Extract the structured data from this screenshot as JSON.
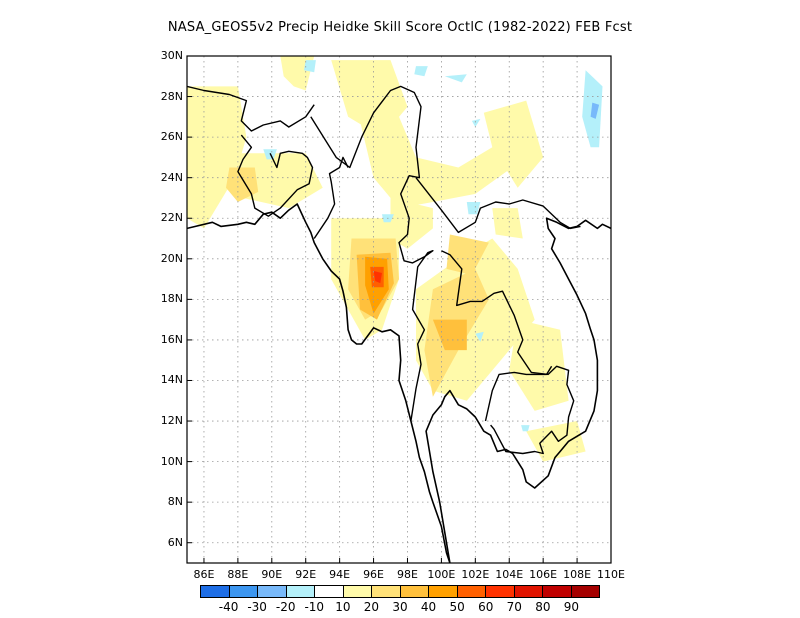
{
  "title": "NASA_GEOS5v2 Precip Heidke Skill Score OctlC (1982-2022) FEB Fcst",
  "map": {
    "lon_range": [
      85,
      110
    ],
    "lat_range": [
      5,
      30
    ],
    "lat_ticks": [
      "30N",
      "28N",
      "26N",
      "24N",
      "22N",
      "20N",
      "18N",
      "16N",
      "14N",
      "12N",
      "10N",
      "8N",
      "6N"
    ],
    "lat_values": [
      30,
      28,
      26,
      24,
      22,
      20,
      18,
      16,
      14,
      12,
      10,
      8,
      6
    ],
    "lon_ticks": [
      "86E",
      "88E",
      "90E",
      "92E",
      "94E",
      "96E",
      "98E",
      "100E",
      "102E",
      "104E",
      "106E",
      "108E",
      "110E"
    ],
    "lon_values": [
      86,
      88,
      90,
      92,
      94,
      96,
      98,
      100,
      102,
      104,
      106,
      108,
      110
    ],
    "grid": true
  },
  "colorbar": {
    "colors": [
      "#1e6ee6",
      "#3c96f0",
      "#78b9fa",
      "#b4f0fa",
      "#ffffff",
      "#fffaaa",
      "#ffe178",
      "#ffc03c",
      "#ffa000",
      "#ff6000",
      "#ff3200",
      "#e11400",
      "#c00000",
      "#a50000"
    ],
    "labels": [
      "-40",
      "-30",
      "-20",
      "-10",
      "10",
      "20",
      "30",
      "40",
      "50",
      "60",
      "70",
      "80",
      "90"
    ]
  },
  "skill_patches": [
    {
      "color": "#fffaaa",
      "lon": [
        85,
        88,
        88.5,
        87.8,
        86,
        85
      ],
      "lat": [
        28.5,
        28.5,
        26,
        24,
        21.5,
        22
      ]
    },
    {
      "color": "#fffaaa",
      "lon": [
        87.8,
        92,
        93,
        91,
        88.3
      ],
      "lat": [
        25.2,
        25.2,
        23.5,
        22.5,
        23
      ]
    },
    {
      "color": "#fffaaa",
      "lon": [
        90.5,
        92.5,
        92,
        91.3,
        90.7
      ],
      "lat": [
        30,
        30,
        28.3,
        28.5,
        29
      ]
    },
    {
      "color": "#fffaaa",
      "lon": [
        93.5,
        97,
        98,
        96.5,
        94.5
      ],
      "lat": [
        29.8,
        29.8,
        27.5,
        26,
        27
      ]
    },
    {
      "color": "#fffaaa",
      "lon": [
        95,
        97.5,
        98.5,
        101,
        103,
        104.5,
        102,
        99.5,
        97.5,
        96
      ],
      "lat": [
        27.5,
        27,
        25,
        24.5,
        25.5,
        24.7,
        23.2,
        22.8,
        22.5,
        24
      ]
    },
    {
      "color": "#fffaaa",
      "lon": [
        102.5,
        105,
        106,
        104.5,
        103
      ],
      "lat": [
        27.2,
        27.8,
        25,
        23.5,
        25.5
      ]
    },
    {
      "color": "#fffaaa",
      "lon": [
        97,
        99.5,
        99.5,
        98,
        97
      ],
      "lat": [
        23,
        22.5,
        21.5,
        20.5,
        21
      ]
    },
    {
      "color": "#fffaaa",
      "lon": [
        93.5,
        97.5,
        97.5,
        96.5,
        95.5,
        94.5,
        93.5
      ],
      "lat": [
        22,
        22,
        19,
        16.5,
        16,
        17.5,
        19
      ]
    },
    {
      "color": "#fffaaa",
      "lon": [
        98.5,
        101,
        103,
        104.5,
        105.5,
        103.5,
        101.5,
        99.5,
        98.5
      ],
      "lat": [
        18.5,
        20,
        21,
        19.5,
        17,
        15,
        13,
        13.5,
        15
      ]
    },
    {
      "color": "#fffaaa",
      "lon": [
        104.5,
        107,
        107.5,
        105.5,
        104
      ],
      "lat": [
        17,
        16.5,
        13,
        12.5,
        14.5
      ]
    },
    {
      "color": "#fffaaa",
      "lon": [
        105,
        108,
        108.5,
        106
      ],
      "lat": [
        11.5,
        12,
        10.5,
        10
      ]
    },
    {
      "color": "#fffaaa",
      "lon": [
        103,
        104.5,
        104.8,
        103.2
      ],
      "lat": [
        22.5,
        22.5,
        21,
        21.2
      ]
    },
    {
      "color": "#ffe178",
      "lon": [
        94.7,
        97.3,
        97.5,
        96.5,
        95.5,
        94.5
      ],
      "lat": [
        21,
        21,
        19,
        17.5,
        17,
        18.5
      ]
    },
    {
      "color": "#ffe178",
      "lon": [
        99.5,
        102,
        102.8,
        101,
        99.5,
        99
      ],
      "lat": [
        18.5,
        19.5,
        18,
        15.5,
        13.2,
        15.5
      ]
    },
    {
      "color": "#ffe178",
      "lon": [
        100.5,
        102.8,
        101.8,
        100.3
      ],
      "lat": [
        21.2,
        20.8,
        19.2,
        19.5
      ]
    },
    {
      "color": "#ffe178",
      "lon": [
        87.5,
        89,
        89.2,
        88,
        87.3
      ],
      "lat": [
        24.5,
        24.5,
        23.3,
        22.8,
        23.5
      ]
    },
    {
      "color": "#ffc03c",
      "lon": [
        95,
        97,
        97.2,
        96.2,
        95.2
      ],
      "lat": [
        20.2,
        20.3,
        18.8,
        17,
        17.5
      ]
    },
    {
      "color": "#ffc03c",
      "lon": [
        99.5,
        101.5,
        101.5,
        100.2
      ],
      "lat": [
        17,
        17,
        15.5,
        15.5
      ]
    },
    {
      "color": "#ffa000",
      "lon": [
        95.5,
        96.8,
        96.9,
        96,
        95.5
      ],
      "lat": [
        20.1,
        20,
        18.5,
        17.3,
        18.7
      ]
    },
    {
      "color": "#ff6000",
      "lon": [
        95.8,
        96.6,
        96.6,
        95.9
      ],
      "lat": [
        19.6,
        19.6,
        18.6,
        18.6
      ]
    },
    {
      "color": "#ff3200",
      "lon": [
        96.0,
        96.5,
        96.4,
        96.1
      ],
      "lat": [
        19.4,
        19.3,
        18.8,
        18.9
      ]
    },
    {
      "color": "#b4f0fa",
      "lon": [
        92,
        92.6,
        92.5,
        91.9
      ],
      "lat": [
        29.8,
        29.8,
        29.2,
        29.3
      ]
    },
    {
      "color": "#b4f0fa",
      "lon": [
        98.5,
        99.2,
        99,
        98.4
      ],
      "lat": [
        29.5,
        29.5,
        29,
        29.1
      ]
    },
    {
      "color": "#b4f0fa",
      "lon": [
        100.2,
        101.5,
        101.2
      ],
      "lat": [
        29,
        29.1,
        28.7
      ]
    },
    {
      "color": "#b4f0fa",
      "lon": [
        101.8,
        102.3,
        102
      ],
      "lat": [
        26.8,
        26.9,
        26.5
      ]
    },
    {
      "color": "#b4f0fa",
      "lon": [
        108.5,
        109.5,
        109.3,
        108.8,
        108.3
      ],
      "lat": [
        29.3,
        28.5,
        25.5,
        25.5,
        27
      ]
    },
    {
      "color": "#78b9fa",
      "lon": [
        108.9,
        109.3,
        109.1,
        108.8
      ],
      "lat": [
        27.7,
        27.6,
        26.9,
        27
      ]
    },
    {
      "color": "#b4f0fa",
      "lon": [
        89.5,
        90.3,
        90.1,
        89.7
      ],
      "lat": [
        25.4,
        25.4,
        24.9,
        24.9
      ]
    },
    {
      "color": "#b4f0fa",
      "lon": [
        96.5,
        97.2,
        97,
        96.6
      ],
      "lat": [
        22.2,
        22.2,
        21.8,
        21.8
      ]
    },
    {
      "color": "#b4f0fa",
      "lon": [
        101.5,
        102.3,
        102.1,
        101.6
      ],
      "lat": [
        22.8,
        22.8,
        22.2,
        22.2
      ]
    },
    {
      "color": "#b4f0fa",
      "lon": [
        102,
        102.5,
        102.3
      ],
      "lat": [
        16.3,
        16.4,
        15.9
      ]
    },
    {
      "color": "#b4f0fa",
      "lon": [
        104.7,
        105.2,
        105.1,
        104.8
      ],
      "lat": [
        11.8,
        11.8,
        11.5,
        11.5
      ]
    }
  ],
  "coastlines": [
    {
      "lon": [
        85,
        86.5,
        87,
        88,
        88.5,
        89,
        89.5,
        90,
        90.5,
        91,
        91.5,
        92,
        92.3,
        92.5,
        93,
        93.5,
        94,
        94.2,
        94.4,
        94.5,
        94.7,
        95,
        95.3,
        96,
        96.5,
        97,
        97.5,
        97.6,
        97.5,
        97.9,
        98.2,
        98.5,
        98.7,
        99,
        99.3,
        99.5,
        100,
        100.3,
        100.5,
        100.2,
        99.9,
        99.5,
        99.3,
        99.1,
        99.5,
        100,
        100.2,
        100.5,
        101,
        101.5,
        102,
        102.5,
        102.9,
        103.3,
        103.8,
        104.2,
        104.5,
        104.8,
        105,
        105.5,
        106.3,
        106.7,
        107,
        107.5,
        108.5,
        109,
        109.2,
        109.2,
        109,
        108.8,
        108.5,
        108,
        107.5,
        107,
        106.5,
        106.7,
        106.3,
        106.2,
        106.8,
        107.5,
        108,
        108.5,
        109.2,
        109.5,
        110
      ],
      "lat": [
        21.5,
        21.8,
        21.6,
        21.7,
        21.8,
        21.7,
        22.2,
        22.3,
        22.0,
        22.4,
        22.7,
        21.8,
        21.3,
        20.8,
        20.0,
        19.4,
        19.0,
        18.4,
        17.6,
        16.5,
        16.0,
        15.8,
        15.8,
        16.6,
        16.4,
        16.5,
        16.2,
        15.0,
        14.0,
        13.0,
        12.0,
        11.0,
        10.2,
        9.5,
        8.5,
        8.0,
        6.8,
        5.5,
        5.0,
        6.5,
        8.0,
        9.5,
        10.5,
        11.5,
        12.3,
        12.8,
        13.2,
        13.5,
        12.8,
        12.6,
        12.2,
        11.5,
        11.3,
        10.5,
        10.6,
        10.4,
        10.0,
        9.6,
        9.0,
        8.7,
        9.3,
        10.2,
        10.5,
        11.0,
        11.5,
        12.5,
        13.5,
        15.0,
        16.0,
        16.5,
        17.3,
        18.2,
        19.0,
        19.8,
        20.5,
        21.0,
        21.5,
        22.0,
        21.8,
        21.5,
        21.6,
        21.9,
        21.5,
        21.7,
        21.5
      ]
    }
  ],
  "borders": [
    {
      "lon": [
        85,
        86,
        87.5,
        88.5,
        88.2,
        88.8,
        89.5,
        90.5,
        91,
        92,
        92.5
      ],
      "lat": [
        28.5,
        28.3,
        28.1,
        27.8,
        26.8,
        26.3,
        26.6,
        26.8,
        26.5,
        27.0,
        27.6
      ]
    },
    {
      "lon": [
        88.2,
        88.8,
        88.3,
        88.0,
        88.8,
        89.0,
        89.8,
        90.5,
        91.5,
        92.2,
        92.4,
        92.1,
        91.8,
        91.0,
        90.5,
        90.3,
        89.9
      ],
      "lat": [
        26.1,
        25.5,
        24.9,
        24.3,
        23.2,
        22.5,
        22.1,
        22.5,
        23.4,
        23.7,
        24.5,
        25.0,
        25.2,
        25.3,
        25.2,
        24.5,
        25.2
      ]
    },
    {
      "lon": [
        92.3,
        93.2,
        93.8,
        94.6,
        95.3,
        96.0,
        97.0,
        97.6,
        98.4,
        98.8,
        98.5,
        98.7,
        98.1,
        97.6,
        98.1,
        98.0,
        97.5,
        97.8,
        98.3,
        99.0,
        99.5,
        99.2,
        98.6,
        98.3,
        99.0,
        98.6,
        98.8,
        98.5,
        98.2
      ],
      "lat": [
        27.0,
        25.8,
        25.0,
        24.5,
        26.0,
        27.2,
        28.3,
        28.5,
        28.2,
        27.5,
        25.5,
        24.0,
        24.1,
        23.2,
        22.0,
        21.2,
        20.8,
        19.9,
        19.8,
        20.1,
        20.4,
        20.3,
        19.6,
        17.5,
        16.5,
        15.8,
        14.8,
        13.6,
        12.0
      ]
    },
    {
      "lon": [
        92.5,
        93.3,
        93.7,
        93.5,
        93.4,
        94.0,
        94.2,
        94.5
      ],
      "lat": [
        21.0,
        22.0,
        22.7,
        23.8,
        24.2,
        24.5,
        25.0,
        24.5
      ]
    },
    {
      "lon": [
        98.5,
        100,
        101,
        102,
        102.3,
        103.2,
        104.0,
        104.8,
        106,
        107.0,
        107.6,
        108.2
      ],
      "lat": [
        24.0,
        22.4,
        21.3,
        21.8,
        22.5,
        22.8,
        22.7,
        22.9,
        22.6,
        21.8,
        21.5,
        21.6
      ]
    },
    {
      "lon": [
        100.0,
        100.5,
        101.2,
        100.9,
        101.7,
        102.4,
        103.1,
        103.6,
        104.3,
        104.8,
        104.5,
        105.3,
        106.3,
        106.8,
        107.5,
        107.4,
        107.8,
        107.5,
        107.4,
        106.9,
        106.5,
        105.8,
        106.0,
        105.5,
        104.8,
        103.8,
        103.1,
        102.9
      ],
      "lat": [
        20.4,
        20.2,
        19.5,
        17.7,
        17.9,
        17.9,
        18.3,
        18.4,
        17.2,
        16.0,
        15.4,
        14.4,
        14.3,
        14.7,
        14.5,
        13.8,
        13.0,
        12.2,
        11.3,
        11.0,
        11.5,
        10.9,
        10.4,
        10.5,
        10.4,
        10.5,
        11.6,
        11.8
      ]
    },
    {
      "lon": [
        102.6,
        103.0,
        103.4,
        104.3,
        105.0,
        105.4,
        106.2,
        106.5
      ],
      "lat": [
        12.0,
        13.5,
        14.3,
        14.4,
        14.3,
        14.3,
        14.3,
        14.7
      ]
    }
  ]
}
